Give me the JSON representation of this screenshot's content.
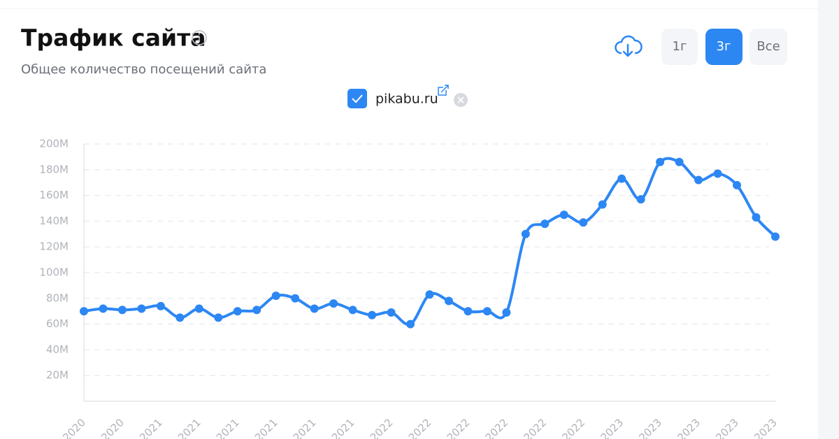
{
  "header": {
    "title": "Трафик сайта",
    "subtitle": "Общее количество посещений сайта"
  },
  "buttons": [
    "1г",
    "3г",
    "Все"
  ],
  "chart_data": {
    "type": "line",
    "categories": [
      "2020",
      null,
      "2020",
      null,
      "2021",
      null,
      "2021",
      null,
      "2021",
      null,
      "2021",
      null,
      "2021",
      null,
      "2021",
      null,
      "2022",
      null,
      "2022",
      null,
      "2022",
      null,
      "2022",
      null,
      "2022",
      null,
      "2022",
      null,
      "2023",
      null,
      "2023",
      null,
      "2023",
      null,
      "2023",
      null,
      "2023"
    ],
    "series": [
      {
        "name": "pikabu.ru",
        "color": "#2d87f3",
        "values": [
          70,
          72,
          71,
          72,
          74,
          65,
          72,
          65,
          70,
          71,
          82,
          80,
          72,
          76,
          71,
          67,
          69,
          60,
          83,
          78,
          70,
          70,
          69,
          130,
          138,
          145,
          139,
          153,
          173,
          157,
          186,
          186,
          172,
          177,
          168,
          143,
          128
        ]
      }
    ],
    "ylim": [
      0,
      200
    ],
    "yticks": [
      {
        "value": 20,
        "label": "20M"
      },
      {
        "value": 40,
        "label": "40M"
      },
      {
        "value": 60,
        "label": "60M"
      },
      {
        "value": 80,
        "label": "80M"
      },
      {
        "value": 100,
        "label": "100M"
      },
      {
        "value": 120,
        "label": "120M"
      },
      {
        "value": 140,
        "label": "140M"
      },
      {
        "value": 160,
        "label": "160M"
      },
      {
        "value": 180,
        "label": "180M"
      },
      {
        "value": 200,
        "label": "200M"
      }
    ],
    "grid": true
  }
}
